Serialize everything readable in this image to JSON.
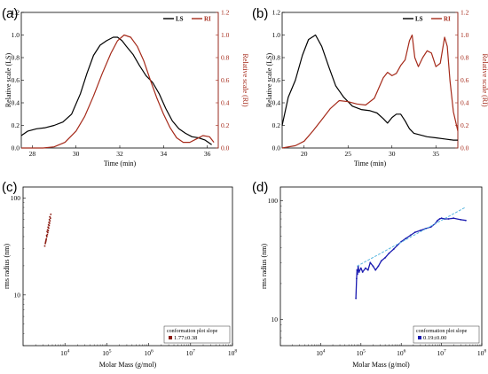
{
  "panels": {
    "a": {
      "label": "(a)"
    },
    "b": {
      "label": "(b)"
    },
    "c": {
      "label": "(c)"
    },
    "d": {
      "label": "(d)"
    }
  },
  "chart_data": [
    {
      "id": "a",
      "type": "line",
      "xlabel": "Time (min)",
      "ylabel": "Relative scale (LS)",
      "ylabel_right": "Relative scale (RI)",
      "xlim": [
        27.5,
        36.5
      ],
      "ylim": [
        0,
        1.2
      ],
      "xticks": [
        28,
        30,
        32,
        34,
        36
      ],
      "yticks": [
        0.0,
        0.2,
        0.4,
        0.6,
        0.8,
        1.0,
        1.2
      ],
      "legend": "top-right",
      "series": [
        {
          "name": "LS",
          "color": "#000000",
          "axis": "left",
          "x": [
            27.5,
            27.8,
            28.2,
            28.6,
            29.0,
            29.4,
            29.8,
            30.2,
            30.5,
            30.8,
            31.1,
            31.4,
            31.7,
            31.9,
            32.1,
            32.3,
            32.6,
            32.9,
            33.2,
            33.5,
            33.8,
            34.1,
            34.4,
            34.7,
            35.0,
            35.3,
            35.6,
            35.9,
            36.2
          ],
          "values": [
            0.11,
            0.15,
            0.17,
            0.18,
            0.2,
            0.23,
            0.3,
            0.48,
            0.66,
            0.82,
            0.91,
            0.95,
            0.98,
            0.98,
            0.95,
            0.9,
            0.83,
            0.73,
            0.64,
            0.58,
            0.48,
            0.35,
            0.24,
            0.17,
            0.13,
            0.1,
            0.09,
            0.07,
            0.03
          ]
        },
        {
          "name": "RI",
          "color": "#a52a1a",
          "axis": "right",
          "x": [
            27.5,
            28.0,
            28.5,
            29.0,
            29.5,
            30.0,
            30.4,
            30.8,
            31.2,
            31.6,
            31.9,
            32.2,
            32.5,
            32.8,
            33.1,
            33.4,
            33.7,
            34.0,
            34.3,
            34.6,
            34.9,
            35.2,
            35.5,
            35.8,
            36.1,
            36.3
          ],
          "values": [
            0.0,
            0.0,
            0.0,
            0.01,
            0.05,
            0.15,
            0.28,
            0.46,
            0.66,
            0.84,
            0.95,
            1.0,
            0.98,
            0.9,
            0.77,
            0.6,
            0.44,
            0.3,
            0.18,
            0.09,
            0.05,
            0.05,
            0.08,
            0.11,
            0.1,
            0.05
          ]
        }
      ]
    },
    {
      "id": "b",
      "type": "line",
      "xlabel": "Time (min)",
      "ylabel": "Relative scale (LS)",
      "ylabel_right": "Relative scale (RI)",
      "xlim": [
        17.5,
        37.5
      ],
      "ylim": [
        0,
        1.2
      ],
      "xticks": [
        20,
        25,
        30,
        35
      ],
      "yticks": [
        0.0,
        0.2,
        0.4,
        0.6,
        0.8,
        1.0,
        1.2
      ],
      "legend": "top-right",
      "series": [
        {
          "name": "LS",
          "color": "#000000",
          "axis": "left",
          "x": [
            17.5,
            18.2,
            19.0,
            19.8,
            20.5,
            21.3,
            22.0,
            22.8,
            23.6,
            24.5,
            25.5,
            26.5,
            27.5,
            28.3,
            29.0,
            29.5,
            30.0,
            30.5,
            31.0,
            31.5,
            32.0,
            32.5,
            33.0,
            34.0,
            35.0,
            36.0,
            37.0,
            37.5
          ],
          "values": [
            0.2,
            0.45,
            0.6,
            0.82,
            0.96,
            1.0,
            0.9,
            0.72,
            0.55,
            0.45,
            0.37,
            0.34,
            0.33,
            0.31,
            0.26,
            0.22,
            0.27,
            0.3,
            0.3,
            0.24,
            0.17,
            0.13,
            0.12,
            0.1,
            0.09,
            0.08,
            0.07,
            0.07
          ]
        },
        {
          "name": "RI",
          "color": "#a52a1a",
          "axis": "right",
          "x": [
            17.5,
            19.0,
            20.0,
            21.0,
            22.0,
            23.0,
            24.0,
            25.0,
            26.0,
            27.0,
            28.0,
            28.5,
            29.0,
            29.5,
            30.0,
            30.5,
            31.0,
            31.5,
            32.0,
            32.3,
            32.6,
            33.0,
            33.5,
            34.0,
            34.5,
            35.0,
            35.5,
            36.0,
            36.3,
            36.6,
            37.0,
            37.5
          ],
          "values": [
            0.0,
            0.02,
            0.06,
            0.15,
            0.25,
            0.35,
            0.42,
            0.41,
            0.39,
            0.38,
            0.44,
            0.53,
            0.62,
            0.67,
            0.64,
            0.66,
            0.73,
            0.78,
            0.95,
            1.0,
            0.8,
            0.72,
            0.8,
            0.86,
            0.84,
            0.72,
            0.75,
            0.98,
            0.9,
            0.6,
            0.32,
            0.15
          ]
        }
      ]
    },
    {
      "id": "c",
      "type": "scatter",
      "xlabel": "Molar Mass (g/mol)",
      "ylabel": "rms radius (nm)",
      "xscale": "log",
      "yscale": "log",
      "xlim": [
        1000,
        100000000
      ],
      "ylim": [
        3,
        130
      ],
      "xticks": [
        {
          "value": 10000,
          "base": "10",
          "exp": "4"
        },
        {
          "value": 100000,
          "base": "10",
          "exp": "5"
        },
        {
          "value": 1000000,
          "base": "10",
          "exp": "6"
        },
        {
          "value": 10000000,
          "base": "10",
          "exp": "7"
        },
        {
          "value": 100000000,
          "base": "10",
          "exp": "8"
        }
      ],
      "yticks": [
        10,
        100
      ],
      "legend": "bottom-right",
      "legend_title": "conformation plot slope",
      "legend_entry": "1.77±0.38",
      "series": [
        {
          "name": "1.77±0.38",
          "color": "#8b1a10",
          "x": [
            3300,
            3400,
            3500,
            3600,
            3700,
            3800,
            3900,
            4000,
            4100,
            4200,
            4300,
            4400,
            4500,
            4600,
            3450,
            3550,
            3650,
            3750,
            3850,
            3950,
            4050,
            4150,
            4250,
            4350
          ],
          "y": [
            32,
            34,
            36,
            38,
            40,
            42,
            44,
            46,
            49,
            52,
            55,
            58,
            62,
            68,
            35,
            37,
            41,
            45,
            47,
            50,
            53,
            56,
            60,
            64
          ]
        }
      ]
    },
    {
      "id": "d",
      "type": "scatter",
      "xlabel": "Molar Mass (g/mol)",
      "ylabel": "rms radius (nm)",
      "xscale": "log",
      "yscale": "log",
      "xlim": [
        1000,
        100000000
      ],
      "ylim": [
        6,
        130
      ],
      "xticks": [
        {
          "value": 10000,
          "base": "10",
          "exp": "4"
        },
        {
          "value": 100000,
          "base": "10",
          "exp": "5"
        },
        {
          "value": 1000000,
          "base": "10",
          "exp": "6"
        },
        {
          "value": 10000000,
          "base": "10",
          "exp": "7"
        },
        {
          "value": 100000000,
          "base": "10",
          "exp": "8"
        }
      ],
      "yticks": [
        10,
        100
      ],
      "legend": "bottom-right",
      "legend_title": "conformation plot slope",
      "legend_entry": "0.19±0.00",
      "series": [
        {
          "name": "0.19±0.00",
          "color": "#1a1ab0",
          "x": [
            75000,
            78000,
            80000,
            82000,
            85000,
            90000,
            100000,
            110000,
            130000,
            150000,
            170000,
            200000,
            230000,
            270000,
            320000,
            400000,
            500000,
            650000,
            800000,
            1000000,
            1300000,
            1700000,
            2200000,
            3000000,
            4000000,
            5500000,
            7000000,
            8000000,
            9000000,
            10000000,
            12000000,
            15000000,
            20000000,
            30000000,
            40000000
          ],
          "y": [
            15,
            22,
            26,
            24,
            28,
            25,
            27,
            25,
            27,
            26,
            30,
            28,
            26,
            28,
            31,
            33,
            36,
            39,
            42,
            45,
            48,
            51,
            54,
            56,
            58,
            60,
            64,
            68,
            70,
            71,
            70,
            70,
            71,
            69,
            68
          ]
        },
        {
          "name": "fit",
          "color": "#5ab8e0",
          "x": [
            80000,
            40000000
          ],
          "y": [
            28,
            88
          ]
        }
      ]
    }
  ]
}
